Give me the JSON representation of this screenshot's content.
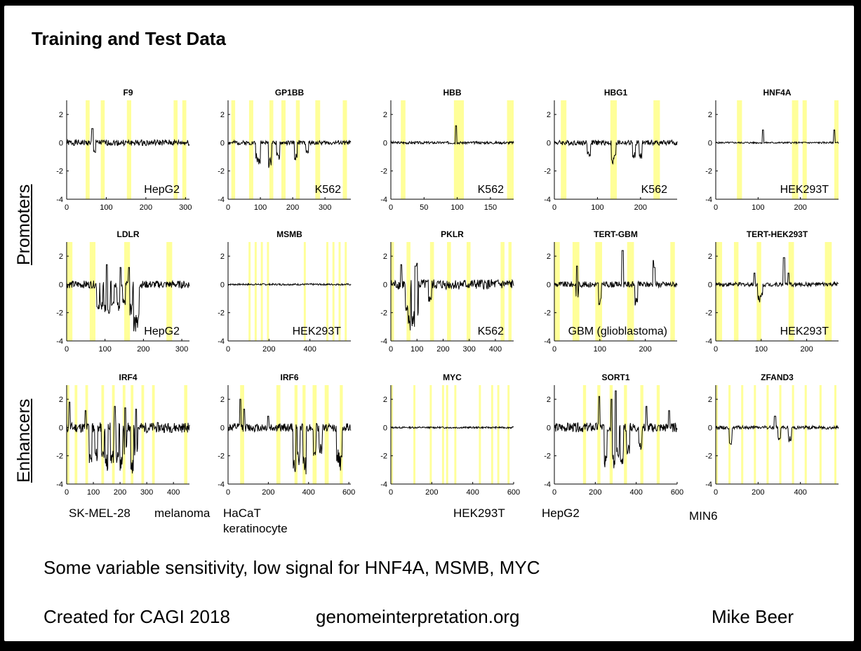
{
  "slide": {
    "title": "Training and Test Data",
    "row_labels": {
      "promoters": "Promoters",
      "enhancers": "Enhancers"
    },
    "enhancer_cell_lines": {
      "irf4_a": "SK-MEL-28",
      "irf4_b": "melanoma",
      "irf6_a": "HaCaT",
      "irf6_b": "keratinocyte",
      "myc": "HEK293T",
      "sort1": "HepG2",
      "zfand3": "MIN6"
    },
    "note": "Some variable sensitivity, low signal for HNF4A, MSMB, MYC",
    "footer": {
      "created": "Created for CAGI 2018",
      "site": "genomeinterpretation.org",
      "author": "Mike Beer"
    },
    "colors": {
      "highlight": "#ffff99",
      "trace": "#000000"
    }
  },
  "chart_data": [
    {
      "type": "line",
      "title": "F9",
      "cell_line": "HepG2",
      "xlim": [
        0,
        310
      ],
      "ylim": [
        -4,
        3
      ],
      "xticks": [
        0,
        100,
        200,
        300
      ],
      "yticks": [
        2,
        0,
        -2,
        -4
      ],
      "highlights": [
        [
          48,
          58
        ],
        [
          86,
          96
        ],
        [
          152,
          163
        ],
        [
          270,
          280
        ],
        [
          292,
          302
        ]
      ],
      "dips": [
        [
          70,
          -0.8
        ]
      ],
      "spikes": [
        [
          65,
          1.0
        ]
      ],
      "amplitude": 0.35,
      "seed": 1
    },
    {
      "type": "line",
      "title": "GP1BB",
      "cell_line": "K562",
      "xlim": [
        0,
        380
      ],
      "ylim": [
        -4,
        3
      ],
      "xticks": [
        0,
        100,
        200,
        300
      ],
      "yticks": [
        2,
        0,
        -2,
        -4
      ],
      "highlights": [
        [
          10,
          22
        ],
        [
          65,
          78
        ],
        [
          128,
          140
        ],
        [
          165,
          178
        ],
        [
          210,
          222
        ],
        [
          270,
          285
        ],
        [
          355,
          368
        ]
      ],
      "dips": [
        [
          90,
          -1.2
        ],
        [
          95,
          -1.8
        ],
        [
          130,
          -1.8
        ],
        [
          155,
          -1.2
        ],
        [
          210,
          -1.3
        ],
        [
          245,
          -0.8
        ]
      ],
      "spikes": [],
      "amplitude": 0.25,
      "seed": 2
    },
    {
      "type": "line",
      "title": "HBB",
      "cell_line": "K562",
      "xlim": [
        0,
        185
      ],
      "ylim": [
        -4,
        3
      ],
      "xticks": [
        0,
        50,
        100,
        150
      ],
      "yticks": [
        2,
        0,
        -2,
        -4
      ],
      "highlights": [
        [
          15,
          22
        ],
        [
          95,
          110
        ],
        [
          175,
          185
        ]
      ],
      "dips": [],
      "spikes": [
        [
          98,
          1.2
        ]
      ],
      "amplitude": 0.15,
      "seed": 3
    },
    {
      "type": "line",
      "title": "HBG1",
      "cell_line": "K562",
      "xlim": [
        0,
        285
      ],
      "ylim": [
        -4,
        3
      ],
      "xticks": [
        0,
        100,
        200
      ],
      "yticks": [
        2,
        0,
        -2,
        -4
      ],
      "highlights": [
        [
          15,
          28
        ],
        [
          130,
          145
        ],
        [
          230,
          245
        ]
      ],
      "dips": [
        [
          80,
          -1.0
        ],
        [
          135,
          -1.8
        ],
        [
          140,
          -1.2
        ],
        [
          185,
          -1.1
        ],
        [
          200,
          -1.2
        ]
      ],
      "spikes": [],
      "amplitude": 0.3,
      "seed": 4
    },
    {
      "type": "line",
      "title": "HNF4A",
      "cell_line": "HEK293T",
      "xlim": [
        0,
        290
      ],
      "ylim": [
        -4,
        3
      ],
      "xticks": [
        0,
        100,
        200
      ],
      "yticks": [
        2,
        0,
        -2,
        -4
      ],
      "highlights": [
        [
          50,
          62
        ],
        [
          180,
          195
        ],
        [
          205,
          215
        ],
        [
          280,
          290
        ]
      ],
      "dips": [],
      "spikes": [
        [
          112,
          0.9
        ],
        [
          280,
          0.9
        ]
      ],
      "amplitude": 0.1,
      "seed": 5
    },
    {
      "type": "line",
      "title": "LDLR",
      "cell_line": "HepG2",
      "xlim": [
        0,
        320
      ],
      "ylim": [
        -4,
        3
      ],
      "xticks": [
        0,
        100,
        200,
        300
      ],
      "yticks": [
        2,
        0,
        -2,
        -4
      ],
      "highlights": [
        [
          0,
          15
        ],
        [
          60,
          75
        ],
        [
          150,
          165
        ],
        [
          260,
          275
        ]
      ],
      "dips": [
        [
          82,
          -2.0
        ],
        [
          90,
          -1.8
        ],
        [
          100,
          -2.0
        ],
        [
          110,
          -2.2
        ],
        [
          120,
          -1.9
        ],
        [
          135,
          -2.0
        ],
        [
          150,
          -1.5
        ],
        [
          168,
          -2.2
        ],
        [
          178,
          -3.6
        ],
        [
          185,
          -3.2
        ]
      ],
      "spikes": [
        [
          105,
          1.4
        ],
        [
          140,
          1.2
        ],
        [
          162,
          1.2
        ]
      ],
      "amplitude": 0.45,
      "seed": 6
    },
    {
      "type": "line",
      "title": "MSMB",
      "cell_line": "HEK293T",
      "xlim": [
        0,
        600
      ],
      "ylim": [
        -4,
        3
      ],
      "xticks": [
        0,
        200,
        400
      ],
      "yticks": [
        2,
        0,
        -2,
        -4
      ],
      "highlights": [
        [
          100,
          110
        ],
        [
          130,
          140
        ],
        [
          160,
          170
        ],
        [
          190,
          200
        ],
        [
          370,
          380
        ],
        [
          480,
          490
        ],
        [
          510,
          520
        ],
        [
          540,
          550
        ],
        [
          570,
          580
        ]
      ],
      "dips": [],
      "spikes": [],
      "amplitude": 0.1,
      "seed": 7
    },
    {
      "type": "line",
      "title": "PKLR",
      "cell_line": "K562",
      "xlim": [
        0,
        470
      ],
      "ylim": [
        -4,
        3
      ],
      "xticks": [
        0,
        100,
        200,
        300,
        400
      ],
      "yticks": [
        2,
        0,
        -2,
        -4
      ],
      "highlights": [
        [
          0,
          12
        ],
        [
          60,
          75
        ],
        [
          150,
          165
        ],
        [
          215,
          230
        ],
        [
          290,
          305
        ],
        [
          420,
          435
        ],
        [
          450,
          462
        ]
      ],
      "dips": [
        [
          70,
          -3.4
        ],
        [
          85,
          -3.1
        ],
        [
          100,
          -2.3
        ],
        [
          60,
          -1.9
        ],
        [
          150,
          -1.3
        ]
      ],
      "spikes": [
        [
          40,
          1.4
        ],
        [
          100,
          1.5
        ],
        [
          95,
          1.3
        ]
      ],
      "amplitude": 0.6,
      "seed": 8
    },
    {
      "type": "line",
      "title": "TERT-GBM",
      "cell_line": "GBM (glioblastoma)",
      "xlim": [
        0,
        270
      ],
      "ylim": [
        -4,
        3
      ],
      "xticks": [
        0,
        100,
        200
      ],
      "yticks": [
        2,
        0,
        -2,
        -4
      ],
      "highlights": [
        [
          0,
          12
        ],
        [
          40,
          55
        ],
        [
          90,
          105
        ],
        [
          160,
          175
        ],
        [
          255,
          265
        ]
      ],
      "dips": [
        [
          100,
          -1.6
        ],
        [
          180,
          -1.5
        ],
        [
          50,
          -1.0
        ]
      ],
      "spikes": [
        [
          150,
          2.4
        ],
        [
          50,
          1.3
        ],
        [
          218,
          1.7
        ],
        [
          220,
          1.2
        ]
      ],
      "amplitude": 0.35,
      "seed": 9
    },
    {
      "type": "line",
      "title": "TERT-HEK293T",
      "cell_line": "HEK293T",
      "xlim": [
        0,
        270
      ],
      "ylim": [
        -4,
        3
      ],
      "xticks": [
        0,
        100,
        200
      ],
      "yticks": [
        2,
        0,
        -2,
        -4
      ],
      "highlights": [
        [
          0,
          14
        ],
        [
          40,
          50
        ],
        [
          90,
          100
        ],
        [
          160,
          172
        ],
        [
          240,
          255
        ]
      ],
      "dips": [
        [
          95,
          -1.3
        ],
        [
          100,
          -1.0
        ]
      ],
      "spikes": [
        [
          150,
          1.9
        ],
        [
          85,
          0.8
        ],
        [
          160,
          0.8
        ]
      ],
      "amplitude": 0.25,
      "seed": 10
    },
    {
      "type": "line",
      "title": "IRF4",
      "cell_line": "SK-MEL-28",
      "xlim": [
        0,
        460
      ],
      "ylim": [
        -4,
        3
      ],
      "xticks": [
        0,
        100,
        200,
        300,
        400
      ],
      "yticks": [
        2,
        0,
        -2,
        -4
      ],
      "highlights": [
        [
          0,
          10
        ],
        [
          30,
          40
        ],
        [
          70,
          80
        ],
        [
          130,
          140
        ],
        [
          170,
          180
        ],
        [
          210,
          220
        ],
        [
          240,
          250
        ],
        [
          280,
          290
        ],
        [
          320,
          330
        ],
        [
          440,
          452
        ]
      ],
      "dips": [
        [
          90,
          -2.8
        ],
        [
          110,
          -2.4
        ],
        [
          135,
          -2.2
        ],
        [
          150,
          -3.1
        ],
        [
          170,
          -2.6
        ],
        [
          190,
          -2.6
        ],
        [
          205,
          -3.3
        ],
        [
          220,
          -2.1
        ],
        [
          245,
          -3.3
        ],
        [
          260,
          -2.0
        ]
      ],
      "spikes": [
        [
          10,
          1.8
        ],
        [
          70,
          1.2
        ],
        [
          180,
          1.5
        ],
        [
          220,
          1.4
        ],
        [
          260,
          1.3
        ]
      ],
      "amplitude": 0.6,
      "seed": 11
    },
    {
      "type": "line",
      "title": "IRF6",
      "cell_line": "HaCaT",
      "xlim": [
        0,
        610
      ],
      "ylim": [
        -4,
        3
      ],
      "xticks": [
        0,
        200,
        400,
        600
      ],
      "yticks": [
        2,
        0,
        -2,
        -4
      ],
      "highlights": [
        [
          60,
          80
        ],
        [
          240,
          260
        ],
        [
          330,
          345
        ],
        [
          370,
          385
        ],
        [
          420,
          440
        ],
        [
          480,
          500
        ],
        [
          555,
          570
        ]
      ],
      "dips": [
        [
          330,
          -3.2
        ],
        [
          350,
          -2.7
        ],
        [
          380,
          -3.5
        ],
        [
          430,
          -2.1
        ],
        [
          460,
          -1.9
        ],
        [
          560,
          -3.2
        ],
        [
          545,
          -2.5
        ]
      ],
      "spikes": [
        [
          60,
          2.0
        ],
        [
          80,
          1.3
        ],
        [
          200,
          0.8
        ]
      ],
      "amplitude": 0.5,
      "seed": 12
    },
    {
      "type": "line",
      "title": "MYC",
      "cell_line": "HEK293T",
      "xlim": [
        0,
        600
      ],
      "ylim": [
        -4,
        3
      ],
      "xticks": [
        0,
        200,
        400,
        600
      ],
      "yticks": [
        2,
        0,
        -2,
        -4
      ],
      "highlights": [
        [
          0,
          10
        ],
        [
          110,
          120
        ],
        [
          190,
          200
        ],
        [
          250,
          260
        ],
        [
          270,
          280
        ],
        [
          310,
          320
        ],
        [
          430,
          440
        ],
        [
          490,
          500
        ],
        [
          520,
          530
        ],
        [
          570,
          580
        ]
      ],
      "dips": [],
      "spikes": [],
      "amplitude": 0.1,
      "seed": 13
    },
    {
      "type": "line",
      "title": "SORT1",
      "cell_line": "HepG2",
      "xlim": [
        0,
        600
      ],
      "ylim": [
        -4,
        3
      ],
      "xticks": [
        0,
        200,
        400,
        600
      ],
      "yticks": [
        2,
        0,
        -2,
        -4
      ],
      "highlights": [
        [
          140,
          155
        ],
        [
          210,
          225
        ],
        [
          270,
          285
        ],
        [
          340,
          355
        ],
        [
          420,
          435
        ],
        [
          500,
          515
        ]
      ],
      "dips": [
        [
          250,
          -3.1
        ],
        [
          290,
          -3.1
        ],
        [
          310,
          -2.2
        ],
        [
          330,
          -2.6
        ],
        [
          360,
          -2.0
        ],
        [
          420,
          -1.6
        ]
      ],
      "spikes": [
        [
          220,
          2.2
        ],
        [
          300,
          2.6
        ],
        [
          280,
          2.0
        ],
        [
          450,
          1.5
        ],
        [
          560,
          1.2
        ]
      ],
      "amplitude": 0.55,
      "seed": 14
    },
    {
      "type": "line",
      "title": "ZFAND3",
      "cell_line": "MIN6",
      "xlim": [
        0,
        580
      ],
      "ylim": [
        -4,
        3
      ],
      "xticks": [
        0,
        200,
        400
      ],
      "yticks": [
        2,
        0,
        -2,
        -4
      ],
      "highlights": [
        [
          0,
          10
        ],
        [
          60,
          70
        ],
        [
          120,
          130
        ],
        [
          180,
          190
        ],
        [
          240,
          250
        ],
        [
          300,
          310
        ],
        [
          360,
          370
        ],
        [
          420,
          430
        ],
        [
          490,
          500
        ],
        [
          560,
          570
        ]
      ],
      "dips": [
        [
          70,
          -1.2
        ],
        [
          300,
          -0.9
        ],
        [
          350,
          -1.0
        ]
      ],
      "spikes": [
        [
          280,
          0.8
        ]
      ],
      "amplitude": 0.2,
      "seed": 15
    }
  ]
}
